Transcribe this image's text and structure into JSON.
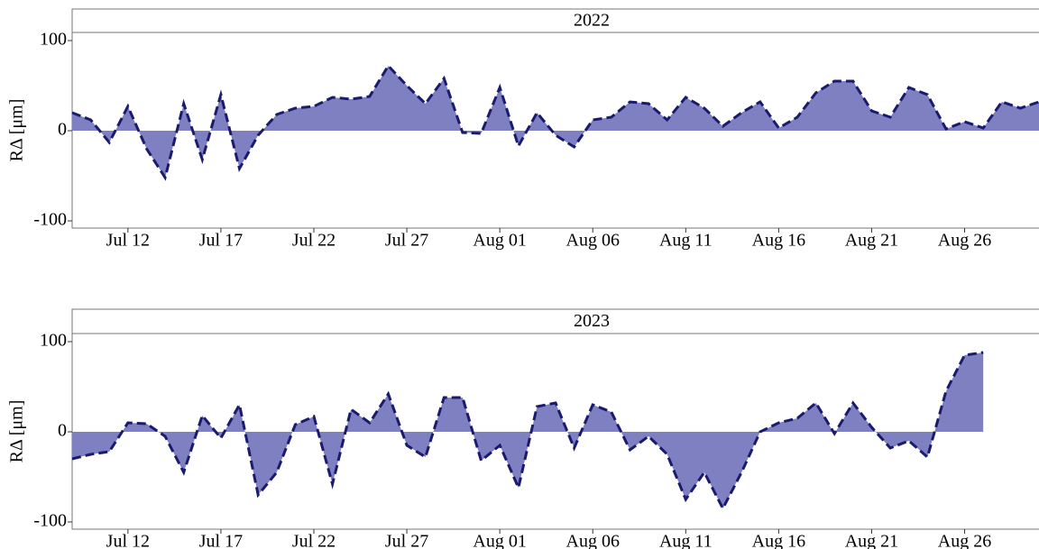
{
  "chart_data": [
    {
      "type": "area",
      "title": "2022",
      "y_label": "RΔ [μm]",
      "x": [
        "Jul 09",
        "Jul 10",
        "Jul 11",
        "Jul 12",
        "Jul 13",
        "Jul 14",
        "Jul 15",
        "Jul 16",
        "Jul 17",
        "Jul 18",
        "Jul 19",
        "Jul 20",
        "Jul 21",
        "Jul 22",
        "Jul 23",
        "Jul 24",
        "Jul 25",
        "Jul 26",
        "Jul 27",
        "Jul 28",
        "Jul 29",
        "Jul 30",
        "Jul 31",
        "Aug 01",
        "Aug 02",
        "Aug 03",
        "Aug 04",
        "Aug 05",
        "Aug 06",
        "Aug 07",
        "Aug 08",
        "Aug 09",
        "Aug 10",
        "Aug 11",
        "Aug 12",
        "Aug 13",
        "Aug 14",
        "Aug 15",
        "Aug 16",
        "Aug 17",
        "Aug 18",
        "Aug 19",
        "Aug 20",
        "Aug 21",
        "Aug 22",
        "Aug 23",
        "Aug 24",
        "Aug 25",
        "Aug 26",
        "Aug 27",
        "Aug 28",
        "Aug 29",
        "Aug 30"
      ],
      "values": [
        20,
        12,
        -13,
        27,
        -20,
        -52,
        30,
        -32,
        40,
        -42,
        -5,
        18,
        25,
        27,
        37,
        35,
        38,
        72,
        50,
        30,
        58,
        -2,
        -3,
        48,
        -17,
        20,
        -5,
        -18,
        12,
        15,
        32,
        30,
        12,
        37,
        25,
        5,
        20,
        32,
        3,
        15,
        42,
        55,
        55,
        22,
        15,
        48,
        40,
        2,
        10,
        3,
        32,
        25,
        32
      ],
      "color": "#7e80c2",
      "line_color": "#1a1a6e",
      "xlim": [
        "Jul 09",
        "Aug 30"
      ],
      "xticks": [
        "Jul 12",
        "Jul 17",
        "Jul 22",
        "Jul 27",
        "Aug 01",
        "Aug 06",
        "Aug 11",
        "Aug 16",
        "Aug 21",
        "Aug 26"
      ],
      "ylim": [
        -108,
        109
      ],
      "yticks": [
        -100,
        0,
        100
      ]
    },
    {
      "type": "area",
      "title": "2023",
      "y_label": "RΔ [μm]",
      "x": [
        "Jul 09",
        "Jul 10",
        "Jul 11",
        "Jul 12",
        "Jul 13",
        "Jul 14",
        "Jul 15",
        "Jul 16",
        "Jul 17",
        "Jul 18",
        "Jul 19",
        "Jul 20",
        "Jul 21",
        "Jul 22",
        "Jul 23",
        "Jul 24",
        "Jul 25",
        "Jul 26",
        "Jul 27",
        "Jul 28",
        "Jul 29",
        "Jul 30",
        "Jul 31",
        "Aug 01",
        "Aug 02",
        "Aug 03",
        "Aug 04",
        "Aug 05",
        "Aug 06",
        "Aug 07",
        "Aug 08",
        "Aug 09",
        "Aug 10",
        "Aug 11",
        "Aug 12",
        "Aug 13",
        "Aug 14",
        "Aug 15",
        "Aug 16",
        "Aug 17",
        "Aug 18",
        "Aug 19",
        "Aug 20",
        "Aug 21",
        "Aug 22",
        "Aug 23",
        "Aug 24",
        "Aug 25",
        "Aug 26",
        "Aug 27"
      ],
      "values": [
        -30,
        -25,
        -22,
        10,
        9,
        -5,
        -45,
        18,
        -7,
        30,
        -70,
        -45,
        8,
        17,
        -58,
        25,
        10,
        42,
        -15,
        -28,
        38,
        38,
        -32,
        -15,
        -62,
        28,
        32,
        -18,
        30,
        22,
        -20,
        -5,
        -25,
        -75,
        -45,
        -85,
        -45,
        0,
        10,
        15,
        32,
        -2,
        32,
        5,
        -18,
        -10,
        -28,
        45,
        85,
        88
      ],
      "color": "#7e80c2",
      "line_color": "#1a1a6e",
      "xlim": [
        "Jul 09",
        "Aug 30"
      ],
      "xticks": [
        "Jul 12",
        "Jul 17",
        "Jul 22",
        "Jul 27",
        "Aug 01",
        "Aug 06",
        "Aug 11",
        "Aug 16",
        "Aug 21",
        "Aug 26"
      ],
      "ylim": [
        -108,
        109
      ],
      "yticks": [
        -100,
        0,
        100
      ]
    }
  ]
}
